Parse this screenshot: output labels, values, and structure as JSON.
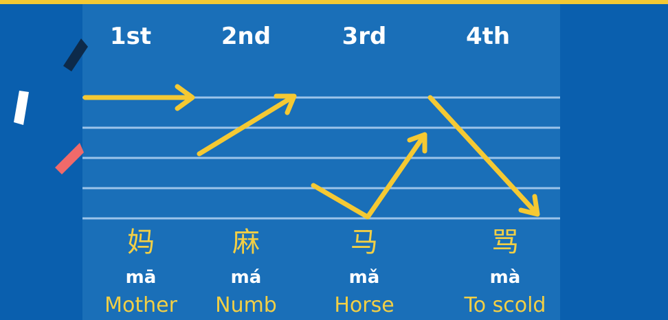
{
  "tones": [
    {
      "label": "1st",
      "character": "妈",
      "pinyin": "mā",
      "meaning": "Mother"
    },
    {
      "label": "2nd",
      "character": "麻",
      "pinyin": "má",
      "meaning": "Numb"
    },
    {
      "label": "3rd",
      "character": "马",
      "pinyin": "mǎ",
      "meaning": "Horse"
    },
    {
      "label": "4th",
      "character": "骂",
      "pinyin": "mà",
      "meaning": "To scold"
    }
  ]
}
